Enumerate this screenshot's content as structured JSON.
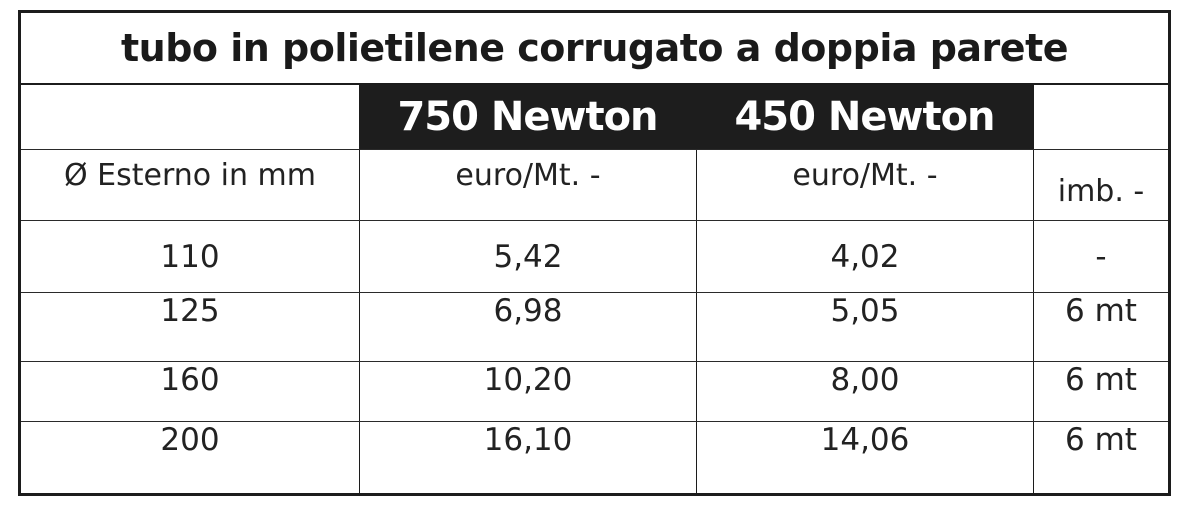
{
  "table": {
    "title": "tubo in polietilene corrugato a doppia parete",
    "group_headers": [
      "750 Newton",
      "450 Newton"
    ],
    "column_headers": [
      "Ø Esterno in mm",
      "euro/Mt. -",
      "euro/Mt. -",
      "imb. -"
    ],
    "rows": [
      [
        "110",
        "5,42",
        "4,02",
        "-"
      ],
      [
        "125",
        "6,98",
        "5,05",
        "6 mt"
      ],
      [
        "160",
        "10,20",
        "8,00",
        "6 mt"
      ],
      [
        "200",
        "16,10",
        "14,06",
        "6 mt"
      ]
    ]
  }
}
